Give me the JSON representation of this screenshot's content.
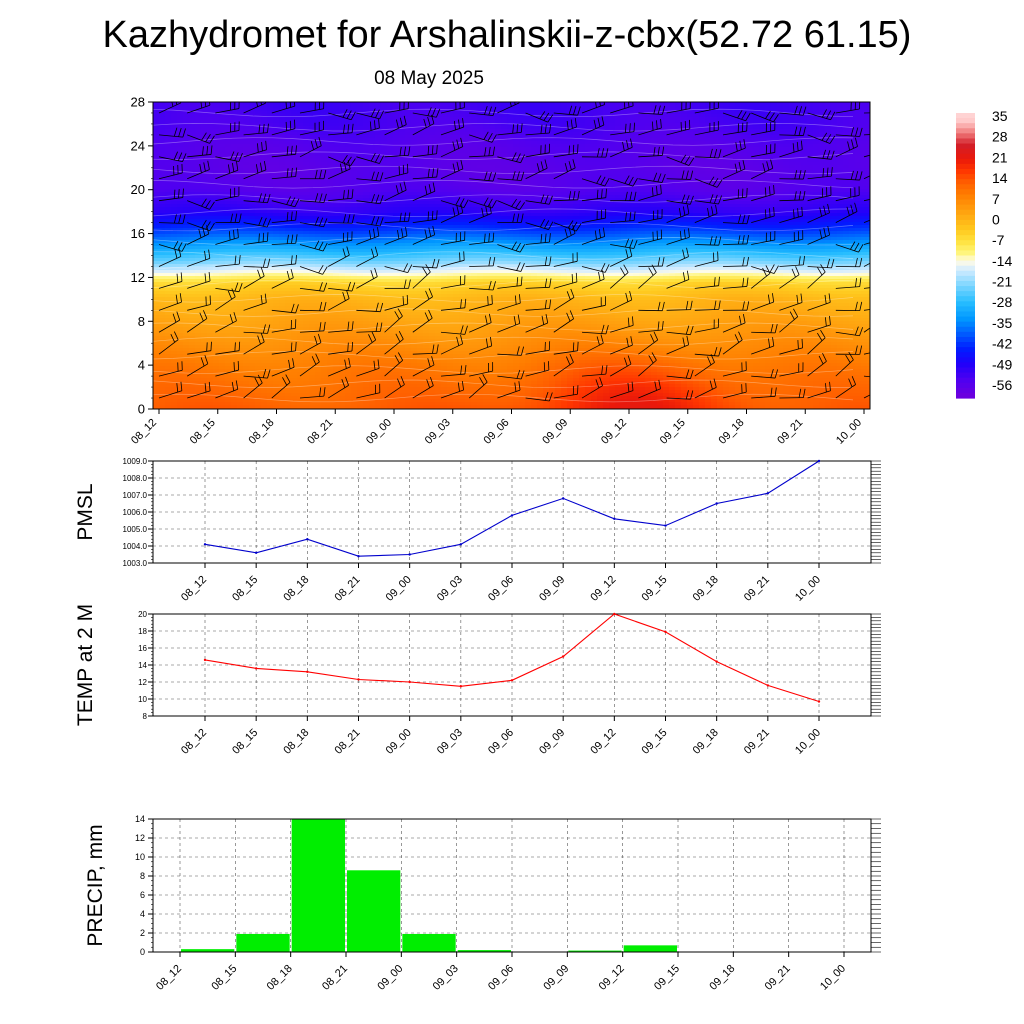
{
  "title": "Kazhydromet for Arshalinskii-z-cbx(52.72 61.15)",
  "subtitle": "08 May 2025",
  "chart_data": [
    {
      "type": "heatmap",
      "name": "upper-air-temperature-section",
      "x": [
        "08_12",
        "08_15",
        "08_18",
        "08_21",
        "09_00",
        "09_03",
        "09_06",
        "09_09",
        "09_12",
        "09_15",
        "09_18",
        "09_21",
        "10_00"
      ],
      "y_ticks": [
        0,
        4,
        8,
        12,
        16,
        20,
        24,
        28
      ],
      "ylim": [
        0,
        28
      ],
      "colorbar": {
        "labels": [
          "35",
          "28",
          "21",
          "14",
          "7",
          "0",
          "-7",
          "-14",
          "-21",
          "-28",
          "-35",
          "-42",
          "-49",
          "-56"
        ],
        "range": [
          -60,
          38
        ]
      },
      "temperature_profile": {
        "levels": [
          0,
          2,
          4,
          6,
          8,
          10,
          11.5,
          12.5,
          13.5,
          15,
          16.5,
          18,
          20,
          22,
          24,
          26,
          28
        ],
        "values": [
          14,
          12,
          10,
          7,
          4,
          1,
          -4,
          -14,
          -22,
          -32,
          -42,
          -50,
          -55,
          -56,
          -55,
          -53,
          -52
        ]
      },
      "surface_warm_spot": {
        "center_x": "09_12",
        "peak": 22
      },
      "wind_barbs": true,
      "grid": false
    },
    {
      "type": "line",
      "name": "pmsl",
      "ylabel": "PMSL",
      "x": [
        "08_12",
        "08_15",
        "08_18",
        "08_21",
        "09_00",
        "09_03",
        "09_06",
        "09_09",
        "09_12",
        "09_15",
        "09_18",
        "09_21",
        "10_00"
      ],
      "values": [
        1004.1,
        1003.6,
        1004.4,
        1003.4,
        1003.5,
        1004.1,
        1005.8,
        1006.8,
        1005.6,
        1005.2,
        1006.5,
        1007.1,
        1009.0
      ],
      "ylim": [
        1003.0,
        1009.0
      ],
      "y_ticks": [
        "1003.0",
        "1004.0",
        "1005.0",
        "1006.0",
        "1007.0",
        "1008.0",
        "1009.0"
      ],
      "color": "#0000cc",
      "grid": true
    },
    {
      "type": "line",
      "name": "temp-2m",
      "ylabel": "TEMP at 2 M",
      "x": [
        "08_12",
        "08_15",
        "08_18",
        "08_21",
        "09_00",
        "09_03",
        "09_06",
        "09_09",
        "09_12",
        "09_15",
        "09_18",
        "09_21",
        "10_00"
      ],
      "values": [
        14.6,
        13.6,
        13.2,
        12.3,
        12.0,
        11.5,
        12.2,
        15.0,
        20.0,
        17.9,
        14.4,
        11.6,
        9.7
      ],
      "ylim": [
        8,
        20
      ],
      "y_ticks": [
        "8",
        "10",
        "12",
        "14",
        "16",
        "18",
        "20"
      ],
      "color": "#ff0000",
      "grid": true
    },
    {
      "type": "bar",
      "name": "precip",
      "ylabel": "PRECIP, mm",
      "x": [
        "08_12",
        "08_15",
        "08_18",
        "08_21",
        "09_00",
        "09_03",
        "09_06",
        "09_09",
        "09_12",
        "09_15",
        "09_18",
        "09_21",
        "10_00"
      ],
      "values": [
        0,
        0.3,
        1.9,
        14.0,
        8.6,
        1.9,
        0.2,
        0,
        0.15,
        0.7,
        0,
        0,
        0.05
      ],
      "ylim": [
        0,
        14
      ],
      "y_ticks": [
        "0",
        "2",
        "4",
        "6",
        "8",
        "10",
        "12",
        "14"
      ],
      "color": "#00ee00",
      "grid": true
    }
  ]
}
